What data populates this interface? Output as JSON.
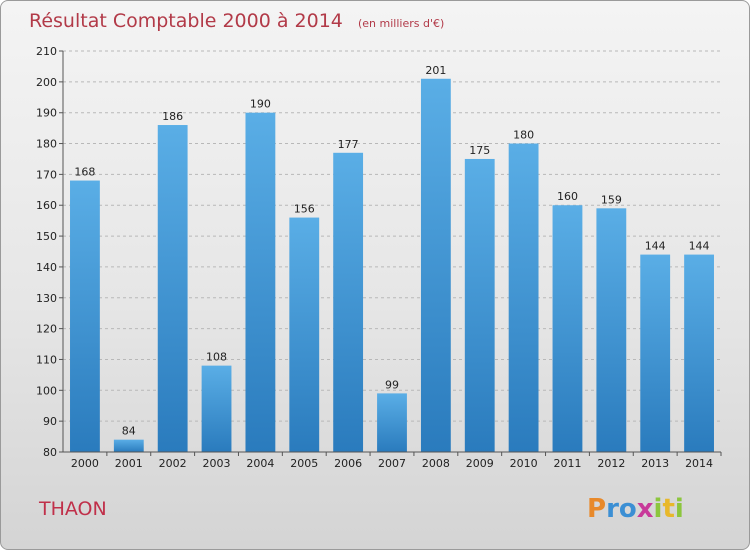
{
  "chart_data": {
    "type": "bar",
    "title": "Résultat Comptable 2000 à 2014",
    "subtitle": "(en milliers d'€)",
    "categories": [
      "2000",
      "2001",
      "2002",
      "2003",
      "2004",
      "2005",
      "2006",
      "2007",
      "2008",
      "2009",
      "2010",
      "2011",
      "2012",
      "2013",
      "2014"
    ],
    "values": [
      168,
      84,
      186,
      108,
      190,
      156,
      177,
      99,
      201,
      175,
      180,
      160,
      159,
      144,
      144
    ],
    "ylim": [
      80,
      210
    ],
    "yticks": [
      80,
      90,
      100,
      110,
      120,
      130,
      140,
      150,
      160,
      170,
      180,
      190,
      200,
      210
    ],
    "grid": true,
    "bar_color_top": "#5aaee6",
    "bar_color_bottom": "#2a7bbd"
  },
  "city": "THAON",
  "logo": {
    "letters": [
      "P",
      "r",
      "o",
      "x",
      "i",
      "t",
      "i"
    ],
    "colors": [
      "#e8892a",
      "#3b8fd4",
      "#3b8fd4",
      "#c83a9a",
      "#8cc63e",
      "#e8b82a",
      "#8cc63e"
    ]
  }
}
